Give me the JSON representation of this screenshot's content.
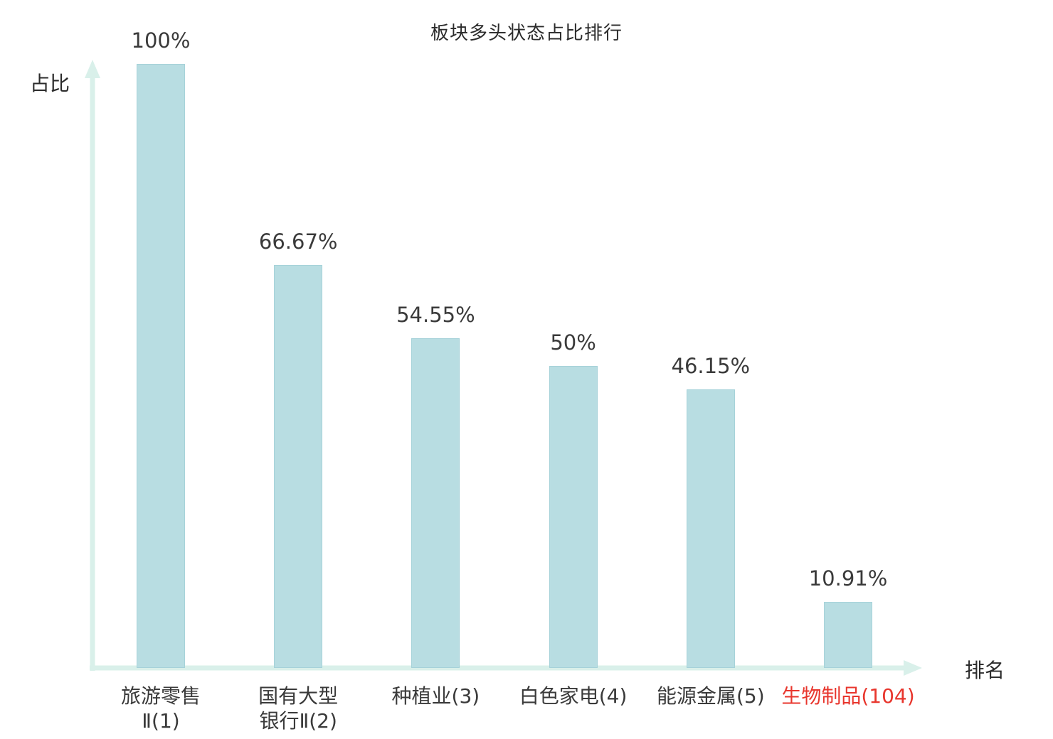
{
  "chart": {
    "title": "板块多头状态占比排行",
    "ylabel": "占比",
    "xlabel": "排名"
  },
  "chart_data": {
    "type": "bar",
    "title": "板块多头状态占比排行",
    "xlabel": "排名",
    "ylabel": "占比",
    "ylim": [
      0,
      100
    ],
    "grid": false,
    "legend": "none",
    "bar_color": "#b8dde2",
    "bar_border_color": "#a6d2d9",
    "axis_color": "#d9f0ea",
    "label_color": "#3a3a3a",
    "highlight_color": "#e8362d",
    "categories": [
      "旅游零售\nⅡ(1)",
      "国有大型\n银行Ⅱ(2)",
      "种植业(3)",
      "白色家电(4)",
      "能源金属(5)",
      "生物制品(104)"
    ],
    "values": [
      100,
      66.67,
      54.55,
      50,
      46.15,
      10.91
    ],
    "value_labels": [
      "100%",
      "66.67%",
      "54.55%",
      "50%",
      "46.15%",
      "10.91%"
    ],
    "category_label_colors": [
      "#3a3a3a",
      "#3a3a3a",
      "#3a3a3a",
      "#3a3a3a",
      "#3a3a3a",
      "#e8362d"
    ]
  }
}
